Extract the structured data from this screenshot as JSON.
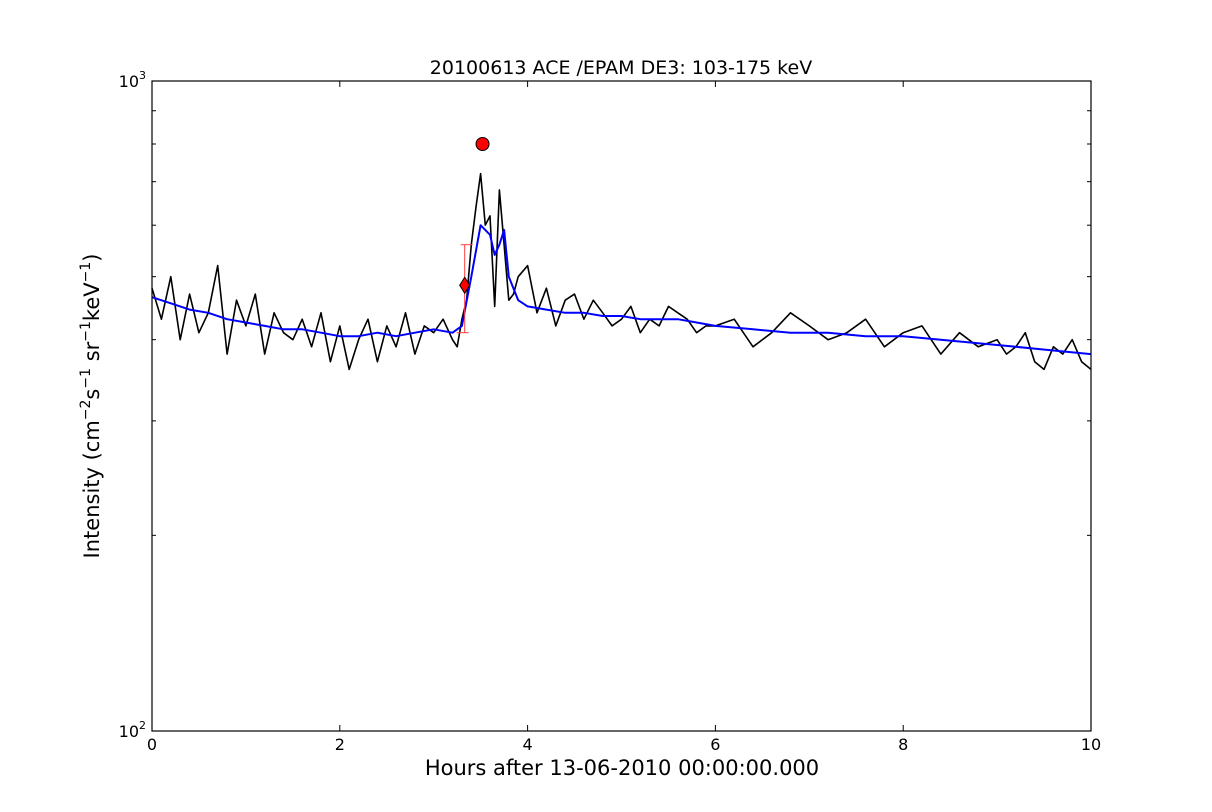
{
  "chart_data": {
    "type": "line",
    "title": "20100613 ACE /EPAM DE3: 103-175 keV",
    "xlabel": "Hours after 13-06-2010 00:00:00.000",
    "ylabel": {
      "parts": [
        {
          "text": "Intensity (cm",
          "sup": false
        },
        {
          "text": "−2",
          "sup": true
        },
        {
          "text": "s",
          "sup": false
        },
        {
          "text": "−1",
          "sup": true
        },
        {
          "text": " sr",
          "sup": false
        },
        {
          "text": "−1",
          "sup": true
        },
        {
          "text": "keV",
          "sup": false
        },
        {
          "text": "−1",
          "sup": true
        },
        {
          "text": ")",
          "sup": false
        }
      ]
    },
    "xlim": [
      0,
      10
    ],
    "ylim": [
      100,
      1000
    ],
    "yscale": "log",
    "grid": false,
    "x_ticks": [
      {
        "value": 0,
        "label": "0"
      },
      {
        "value": 2,
        "label": "2"
      },
      {
        "value": 4,
        "label": "4"
      },
      {
        "value": 6,
        "label": "6"
      },
      {
        "value": 8,
        "label": "8"
      },
      {
        "value": 10,
        "label": "10"
      }
    ],
    "y_ticks_major": [
      {
        "value": 100,
        "base": "10",
        "exp": "2"
      },
      {
        "value": 1000,
        "base": "10",
        "exp": "3"
      }
    ],
    "y_ticks_minor": [
      200,
      300,
      400,
      500,
      600,
      700,
      800,
      900
    ],
    "series": [
      {
        "color": "#000000",
        "width": 1.6,
        "x": [
          0,
          0.1,
          0.2,
          0.3,
          0.4,
          0.5,
          0.6,
          0.7,
          0.8,
          0.9,
          1.0,
          1.1,
          1.2,
          1.3,
          1.4,
          1.5,
          1.6,
          1.7,
          1.8,
          1.9,
          2.0,
          2.1,
          2.2,
          2.3,
          2.4,
          2.5,
          2.6,
          2.7,
          2.8,
          2.9,
          3.0,
          3.1,
          3.2,
          3.25,
          3.3,
          3.35,
          3.4,
          3.45,
          3.5,
          3.55,
          3.6,
          3.65,
          3.7,
          3.75,
          3.8,
          3.85,
          3.9,
          4.0,
          4.1,
          4.2,
          4.3,
          4.4,
          4.5,
          4.6,
          4.7,
          4.8,
          4.9,
          5.0,
          5.1,
          5.2,
          5.3,
          5.4,
          5.5,
          5.6,
          5.7,
          5.8,
          5.9,
          6.0,
          6.2,
          6.4,
          6.6,
          6.8,
          7.0,
          7.2,
          7.4,
          7.6,
          7.8,
          8.0,
          8.2,
          8.4,
          8.6,
          8.8,
          9.0,
          9.1,
          9.2,
          9.3,
          9.4,
          9.5,
          9.6,
          9.7,
          9.8,
          9.9,
          10.0
        ],
        "y": [
          480,
          430,
          500,
          400,
          470,
          410,
          440,
          520,
          380,
          460,
          420,
          470,
          380,
          440,
          410,
          400,
          430,
          390,
          440,
          370,
          420,
          360,
          400,
          430,
          370,
          420,
          390,
          440,
          380,
          420,
          410,
          430,
          400,
          390,
          430,
          460,
          560,
          640,
          720,
          600,
          620,
          450,
          680,
          560,
          460,
          470,
          500,
          520,
          440,
          480,
          420,
          460,
          470,
          430,
          460,
          440,
          420,
          430,
          450,
          410,
          430,
          420,
          450,
          440,
          430,
          410,
          420,
          420,
          430,
          390,
          410,
          440,
          420,
          400,
          410,
          430,
          390,
          410,
          420,
          380,
          410,
          390,
          400,
          380,
          390,
          410,
          370,
          360,
          390,
          380,
          400,
          370,
          360
        ]
      },
      {
        "color": "#0000ff",
        "width": 2,
        "x": [
          0,
          0.2,
          0.4,
          0.6,
          0.8,
          1.0,
          1.2,
          1.4,
          1.6,
          1.8,
          2.0,
          2.2,
          2.4,
          2.6,
          2.8,
          3.0,
          3.2,
          3.3,
          3.4,
          3.5,
          3.6,
          3.65,
          3.7,
          3.75,
          3.8,
          3.9,
          4.0,
          4.2,
          4.4,
          4.6,
          4.8,
          5.0,
          5.2,
          5.4,
          5.6,
          5.8,
          6.0,
          6.4,
          6.8,
          7.2,
          7.6,
          8.0,
          8.4,
          8.8,
          9.2,
          9.6,
          10.0
        ],
        "y": [
          465,
          455,
          445,
          440,
          430,
          425,
          420,
          415,
          415,
          410,
          405,
          405,
          410,
          405,
          410,
          415,
          410,
          420,
          500,
          600,
          580,
          540,
          560,
          590,
          500,
          460,
          450,
          445,
          440,
          440,
          435,
          435,
          430,
          430,
          430,
          425,
          420,
          415,
          410,
          410,
          405,
          405,
          400,
          395,
          390,
          385,
          380
        ]
      }
    ],
    "markers": [
      {
        "shape": "circle",
        "x": 3.52,
        "y": 800,
        "color": "#ff0000"
      },
      {
        "shape": "diamond",
        "x": 3.33,
        "y": 485,
        "color": "#ff0000"
      }
    ],
    "error_bars": [
      {
        "x": 3.33,
        "y_low": 410,
        "y_high": 560,
        "color": "#ff4040"
      }
    ]
  }
}
